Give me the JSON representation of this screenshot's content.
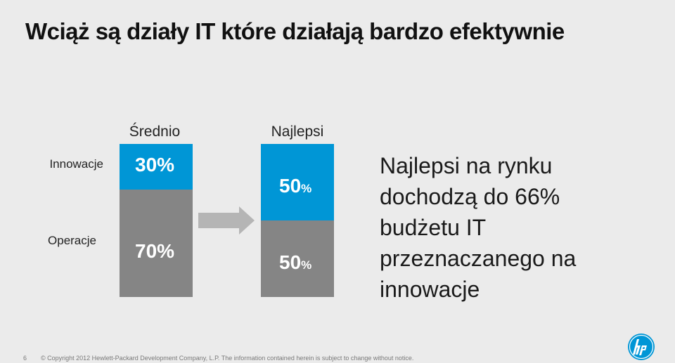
{
  "slide": {
    "title": "Wciąż są działy IT które działają bardzo efektywnie",
    "page_number": "6",
    "copyright": "© Copyright 2012 Hewlett-Packard Development Company, L.P.  The information contained herein is subject to change without notice.",
    "logo_icon": "hp-logo-icon"
  },
  "columns": {
    "average_label": "Średnio",
    "best_label": "Najlepsi"
  },
  "rows": {
    "innovation_label": "Innowacje",
    "operations_label": "Operacje"
  },
  "chart_data": {
    "type": "bar",
    "stacked": true,
    "categories": [
      "Średnio",
      "Najlepsi"
    ],
    "series": [
      {
        "name": "Innowacje",
        "values": [
          30,
          50
        ],
        "color": "#0096d6"
      },
      {
        "name": "Operacje",
        "values": [
          70,
          50
        ],
        "color": "#858585"
      }
    ],
    "unit": "%"
  },
  "labels": {
    "avg_innov_num": "30",
    "avg_innov_pct": "%",
    "avg_ops_num": "70",
    "avg_ops_pct": "%",
    "best_innov_num": "50",
    "best_innov_pct": "%",
    "best_ops_num": "50",
    "best_ops_pct": "%"
  },
  "callout": {
    "line1": "Najlepsi na rynku",
    "line2": "dochodzą do 66%",
    "line3": "budżetu IT",
    "line4": "przeznaczanego na",
    "line5": "innowacje"
  },
  "colors": {
    "innovation": "#0096d6",
    "operations": "#858585",
    "background": "#ebebeb",
    "arrow": "#b5b5b5"
  }
}
